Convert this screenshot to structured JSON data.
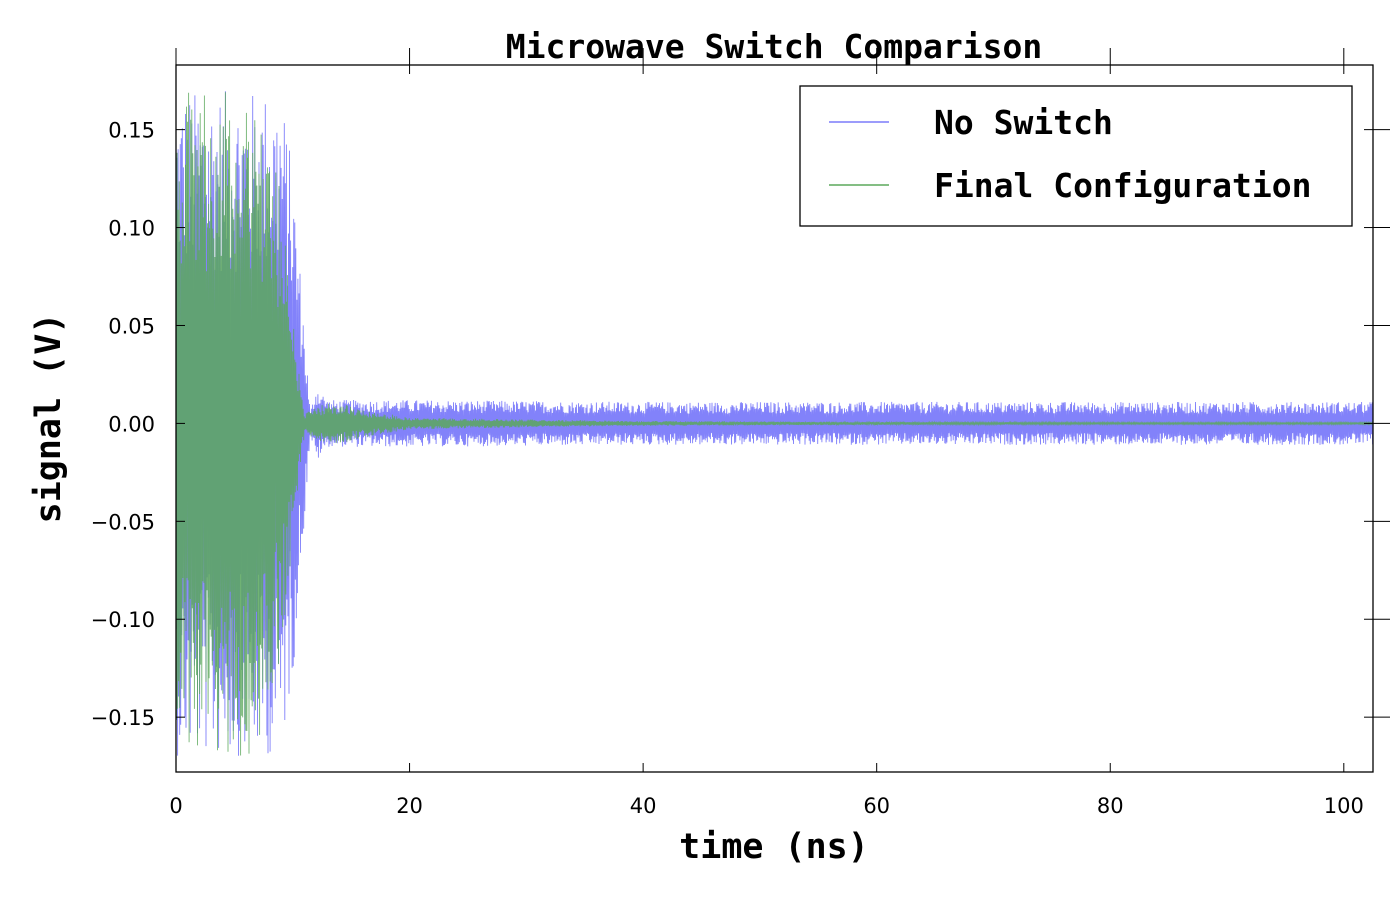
{
  "chart_data": {
    "type": "line",
    "title": "Microwave Switch Comparison",
    "xlabel": "time (ns)",
    "ylabel": "signal (V)",
    "xlim": [
      0,
      102.5
    ],
    "ylim": [
      -0.178,
      0.183
    ],
    "xticks": [
      0,
      20,
      40,
      60,
      80,
      100
    ],
    "xtick_labels": [
      "0",
      "20",
      "40",
      "60",
      "80",
      "100"
    ],
    "yticks": [
      0.15,
      0.1,
      0.05,
      0.0,
      -0.05,
      -0.1,
      -0.15
    ],
    "ytick_labels": [
      "0.15",
      "0.10",
      "0.05",
      "0.00",
      "−0.05",
      "−0.10",
      "−0.15"
    ],
    "grid": false,
    "legend_position": "upper-right",
    "series": [
      {
        "name": "No Switch",
        "color": "#7b7bfa",
        "envelope_t_ns": [
          0,
          9,
          10,
          11,
          11.5,
          12,
          13,
          15,
          20,
          40,
          60,
          80,
          100,
          102.5
        ],
        "envelope_amp_v": [
          0.17,
          0.17,
          0.13,
          0.05,
          0.005,
          0.02,
          0.012,
          0.012,
          0.012,
          0.011,
          0.011,
          0.011,
          0.011,
          0.011
        ]
      },
      {
        "name": "Final Configuration",
        "color": "#5ca85c",
        "envelope_t_ns": [
          0,
          7,
          9,
          10,
          11,
          12,
          13,
          15,
          17,
          20,
          30,
          40,
          60,
          80,
          100,
          102.5
        ],
        "envelope_amp_v": [
          0.17,
          0.17,
          0.12,
          0.06,
          0.005,
          0.008,
          0.011,
          0.009,
          0.006,
          0.003,
          0.002,
          0.0012,
          0.0008,
          0.0005,
          0.0005,
          0.0005
        ]
      }
    ]
  }
}
